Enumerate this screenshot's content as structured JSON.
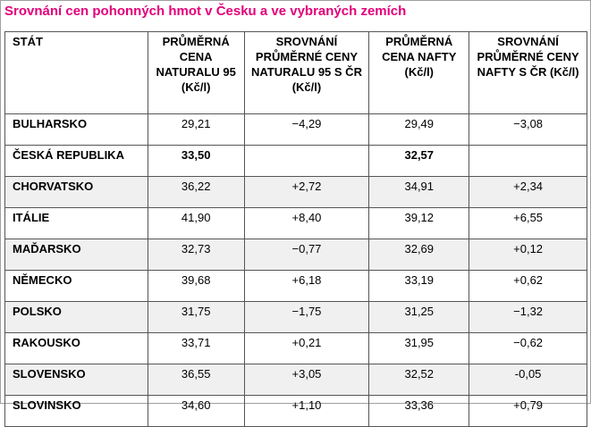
{
  "title": "Srovnání cen pohonných hmot v Česku a ve vybraných zemích",
  "table": {
    "header": [
      "STÁT",
      "PRŮMĚRNÁ CENA NATURALU 95 (Kč/l)",
      "SROVNÁNÍ PRŮMĚRNÉ CENY NATURALU 95 S ČR (Kč/l)",
      "PRŮMĚRNÁ CENA NAFTY (Kč/l)",
      "SROVNÁNÍ PRŮMĚRNÉ CENY NAFTY S ČR (Kč/l)"
    ],
    "rows": [
      [
        "BULHARSKO",
        "29,21",
        "−4,29",
        "29,49",
        "−3,08"
      ],
      [
        "ČESKÁ REPUBLIKA",
        "33,50",
        null,
        "32,57",
        null
      ],
      [
        "CHORVATSKO",
        "36,22",
        "+2,72",
        "34,91",
        "+2,34"
      ],
      [
        "ITÁLIE",
        "41,90",
        "+8,40",
        "39,12",
        "+6,55"
      ],
      [
        "MAĎARSKO",
        "32,73",
        "−0,77",
        "32,69",
        "+0,12"
      ],
      [
        "NĚMECKO",
        "39,68",
        "+6,18",
        "33,19",
        "+0,62"
      ],
      [
        "POLSKO",
        "31,75",
        "−1,75",
        "31,25",
        "−1,32"
      ],
      [
        "RAKOUSKO",
        "33,71",
        "+0,21",
        "31,95",
        "−0,62"
      ],
      [
        "SLOVENSKO",
        "36,55",
        "+3,05",
        "32,52",
        "-0,05"
      ],
      [
        "SLOVINSKO",
        "34,60",
        "+1,10",
        "33,36",
        "+0,79"
      ]
    ]
  }
}
